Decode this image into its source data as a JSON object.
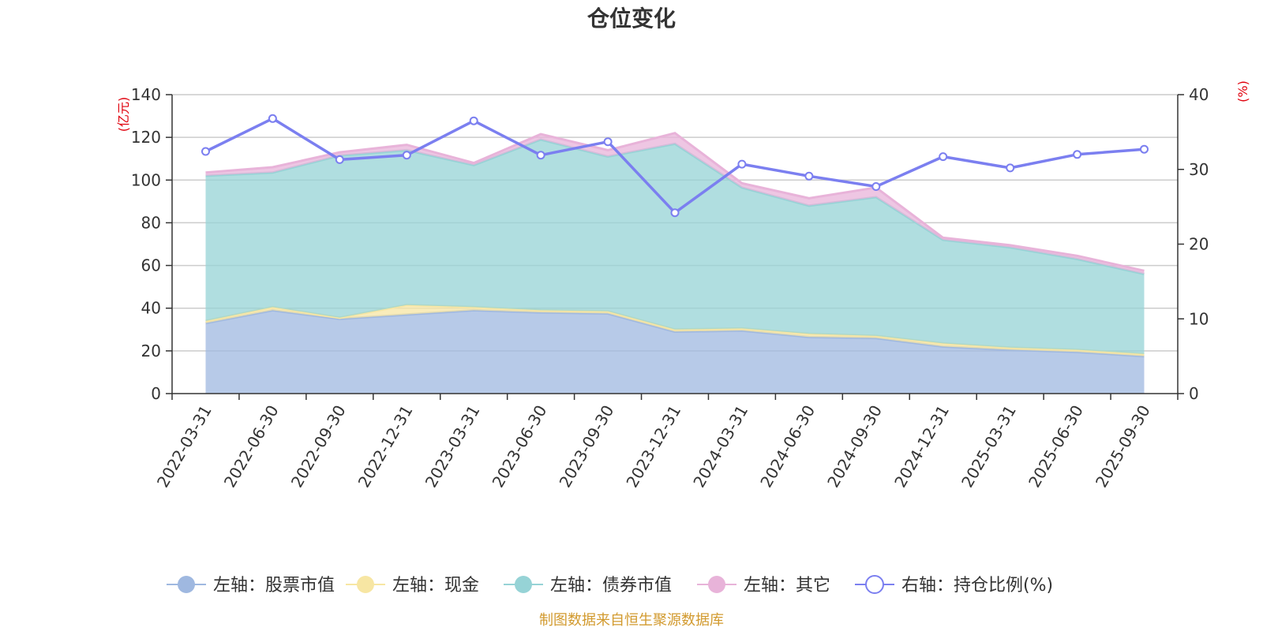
{
  "chart_data": {
    "type": "area",
    "title": "仓位变化",
    "left_axis_name": "(亿元)",
    "right_axis_name": "(%)",
    "categories": [
      "2022-03-31",
      "2022-06-30",
      "2022-09-30",
      "2022-12-31",
      "2023-03-31",
      "2023-06-30",
      "2023-09-30",
      "2023-12-31",
      "2024-03-31",
      "2024-06-30",
      "2024-09-30",
      "2024-12-31",
      "2025-03-31",
      "2025-06-30",
      "2025-09-30"
    ],
    "ylim_left": [
      0,
      140
    ],
    "yticks_left": [
      0,
      20,
      40,
      60,
      80,
      100,
      120,
      140
    ],
    "ylim_right": [
      0,
      40
    ],
    "yticks_right": [
      0,
      10,
      20,
      30,
      40
    ],
    "stacked_series": [
      {
        "name": "左轴：股票市值",
        "color": "#9fb8e0",
        "values": [
          33,
          39,
          35,
          37,
          39,
          38,
          37.5,
          29,
          29.5,
          26.5,
          26,
          22,
          20.5,
          19.5,
          17.5
        ]
      },
      {
        "name": "左轴：现金",
        "color": "#f7e6a3",
        "values": [
          1,
          1.5,
          0.5,
          4.5,
          1.5,
          1,
          1,
          1,
          1,
          1.5,
          1,
          1.5,
          1,
          1,
          1
        ]
      },
      {
        "name": "左轴：债券市值",
        "color": "#96d3d6",
        "values": [
          68,
          63,
          76,
          72.5,
          66.5,
          80,
          72.5,
          87,
          66,
          60,
          65,
          48.5,
          47,
          42.5,
          37.5
        ]
      },
      {
        "name": "左轴：其它",
        "color": "#e8b3d9",
        "values": [
          1.5,
          2.5,
          1.5,
          2.5,
          1,
          2.5,
          3,
          5,
          2,
          3.5,
          4.5,
          1,
          1,
          1.5,
          1.5
        ]
      }
    ],
    "line_series": {
      "name": "右轴：持仓比例(%)",
      "color": "#7b7ff0",
      "axis": "right",
      "values": [
        32.4,
        36.8,
        31.3,
        31.9,
        36.5,
        31.9,
        33.7,
        24.2,
        30.7,
        29.1,
        27.7,
        31.7,
        30.2,
        32.0,
        32.7
      ]
    },
    "legend": [
      "左轴：股票市值",
      "左轴：现金",
      "左轴：债券市值",
      "左轴：其它",
      "右轴：持仓比例(%)"
    ],
    "legend_position": "bottom"
  },
  "source_note": "制图数据来自恒生聚源数据库"
}
